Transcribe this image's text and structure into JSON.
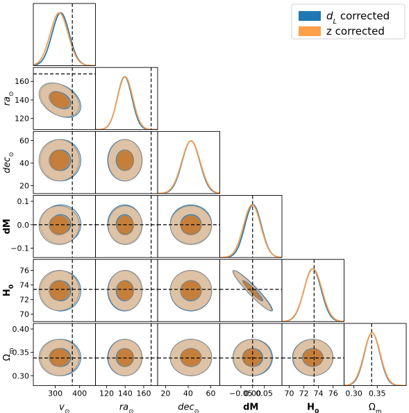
{
  "colors": {
    "dl_corrected": "#1f77b4",
    "z_corrected": "#ff9f4a",
    "contour_outer": "#d9b99a",
    "contour_inner": "#c1772d",
    "contour_edge": "#8a8a8a",
    "reference_line": "#000000"
  },
  "legend": {
    "items": [
      {
        "label_html": "d_L corrected",
        "color_key": "dl_corrected",
        "main": "d",
        "sub": "L",
        "suffix": " corrected"
      },
      {
        "label_html": "z corrected",
        "color_key": "z_corrected",
        "main": "z corrected",
        "sub": "",
        "suffix": ""
      }
    ]
  },
  "chart_data": {
    "type": "corner",
    "parameters": [
      {
        "key": "v",
        "label_main": "v",
        "label_sub": "⊙",
        "italic": true,
        "range": [
          210,
          465
        ],
        "ticks": [
          300,
          400
        ],
        "tick_labels": [
          "300",
          "400"
        ],
        "truth": 370,
        "mean": {
          "dl_corrected": 322,
          "z_corrected": 316
        },
        "sigma": 36
      },
      {
        "key": "ra",
        "label_main": "ra",
        "label_sub": "⊙",
        "italic": true,
        "range": [
          108,
          175
        ],
        "ticks": [
          120,
          140,
          160
        ],
        "tick_labels": [
          "120",
          "140",
          "160"
        ],
        "truth": 168,
        "mean": {
          "dl_corrected": 139.5,
          "z_corrected": 140
        },
        "sigma": 8
      },
      {
        "key": "dec",
        "label_main": "dec",
        "label_sub": "⊙",
        "italic": true,
        "range": [
          13,
          68
        ],
        "ticks": [
          20,
          40,
          60
        ],
        "tick_labels": [
          "20",
          "40",
          "60"
        ],
        "truth": null,
        "mean": {
          "dl_corrected": 42.5,
          "z_corrected": 42.5
        },
        "sigma": 8
      },
      {
        "key": "dM",
        "label_main": "dM",
        "label_sub": "",
        "italic": false,
        "bold": true,
        "range": [
          -0.14,
          0.125
        ],
        "ticks": [
          -0.05,
          0.0,
          0.05
        ],
        "tick_labels": [
          "−0.05",
          "0.00",
          "0.05"
        ],
        "y_ticks": [
          -0.1,
          0.0,
          0.1
        ],
        "y_tick_labels": [
          "−0.1",
          "0.0",
          "0.1"
        ],
        "truth": 0.0,
        "mean": {
          "dl_corrected": 0.002,
          "z_corrected": -0.002
        },
        "sigma": 0.036
      },
      {
        "key": "H0",
        "label_main": "H",
        "label_sub": "0",
        "italic": false,
        "bold": true,
        "range": [
          69.0,
          77.5
        ],
        "ticks": [
          70,
          72,
          74,
          76
        ],
        "tick_labels": [
          "70",
          "72",
          "74",
          "76"
        ],
        "truth": 73.4,
        "mean": {
          "dl_corrected": 73.2,
          "z_corrected": 73.25
        },
        "sigma": 1.2
      },
      {
        "key": "Om",
        "label_main": "Ω",
        "label_sub": "m",
        "italic": false,
        "range": [
          0.279,
          0.412
        ],
        "ticks": [
          0.3,
          0.35
        ],
        "tick_labels": [
          "0.30",
          "0.35"
        ],
        "y_ticks": [
          0.3,
          0.35,
          0.4
        ],
        "y_tick_labels": [
          "0.30",
          "0.35",
          "0.40"
        ],
        "truth": 0.338,
        "mean": {
          "dl_corrected": 0.339,
          "z_corrected": 0.339
        },
        "sigma": 0.017
      }
    ],
    "correlations": {
      "v-ra": -0.35,
      "dM-H0": -0.95
    },
    "series": [
      {
        "name": "d_L corrected"
      },
      {
        "name": "z corrected"
      }
    ],
    "contour_levels_sigma": [
      1,
      2
    ],
    "reference_lines": "dashed black at truth values"
  }
}
